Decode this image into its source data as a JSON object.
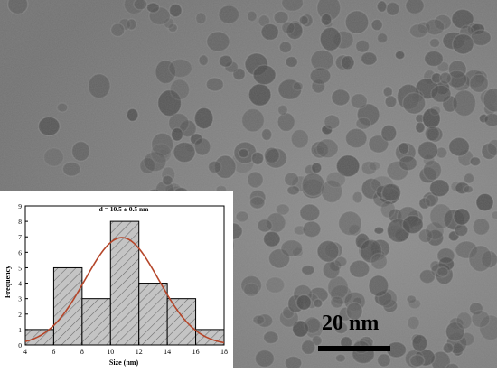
{
  "scale_bar": {
    "label": "20 nm"
  },
  "chart_data": {
    "type": "bar",
    "title": "d = 10.5 ± 0.5  nm",
    "xlabel": "Size (nm)",
    "ylabel": "Frequency",
    "xlim": [
      4,
      18
    ],
    "ylim": [
      0,
      9
    ],
    "xticks": [
      4,
      6,
      8,
      10,
      12,
      14,
      16,
      18
    ],
    "yticks": [
      0,
      1,
      2,
      3,
      4,
      5,
      6,
      7,
      8,
      9
    ],
    "bins": [
      {
        "x0": 4,
        "x1": 6,
        "value": 1
      },
      {
        "x0": 6,
        "x1": 8,
        "value": 5
      },
      {
        "x0": 8,
        "x1": 10,
        "value": 3
      },
      {
        "x0": 10,
        "x1": 12,
        "value": 8
      },
      {
        "x0": 12,
        "x1": 14,
        "value": 4
      },
      {
        "x0": 14,
        "x1": 16,
        "value": 3
      },
      {
        "x0": 16,
        "x1": 18,
        "value": 1
      }
    ],
    "fit": {
      "type": "gaussian",
      "center": 10.8,
      "sigma": 2.6,
      "peak": 6.95,
      "color": "#b5462a"
    },
    "bar_fill": "#bdbdbd",
    "grid": false
  }
}
